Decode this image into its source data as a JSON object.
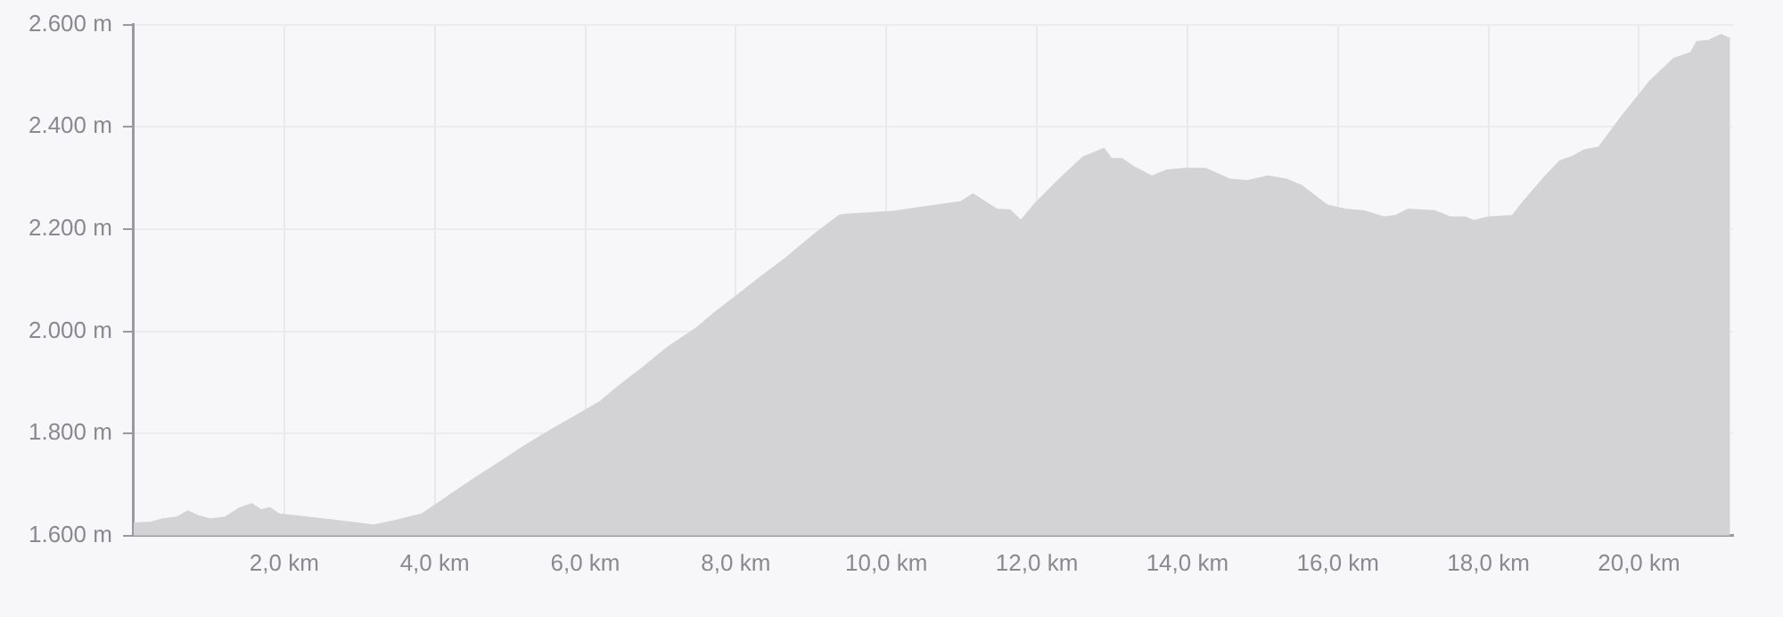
{
  "chart_data": {
    "type": "area",
    "grid": true,
    "legend": false,
    "marker": "none",
    "xlim": [
      0,
      21.25
    ],
    "xticks": [
      {
        "value": 2,
        "label": "2,0 km"
      },
      {
        "value": 4,
        "label": "4,0 km"
      },
      {
        "value": 6,
        "label": "6,0 km"
      },
      {
        "value": 8,
        "label": "8,0 km"
      },
      {
        "value": 10,
        "label": "10,0 km"
      },
      {
        "value": 12,
        "label": "12,0 km"
      },
      {
        "value": 14,
        "label": "14,0 km"
      },
      {
        "value": 16,
        "label": "16,0 km"
      },
      {
        "value": 18,
        "label": "18,0 km"
      },
      {
        "value": 20,
        "label": "20,0 km"
      }
    ],
    "ylim": [
      1600,
      2600
    ],
    "yticks": [
      {
        "value": 1600,
        "label": "1.600 m"
      },
      {
        "value": 1800,
        "label": "1.800 m"
      },
      {
        "value": 2000,
        "label": "2.000 m"
      },
      {
        "value": 2200,
        "label": "2.200 m"
      },
      {
        "value": 2400,
        "label": "2.400 m"
      },
      {
        "value": 2600,
        "label": "2.600 m"
      }
    ],
    "x": [
      0,
      0.23,
      0.38,
      0.58,
      0.72,
      0.86,
      1.02,
      1.22,
      1.41,
      1.57,
      1.69,
      1.81,
      1.93,
      2.17,
      2.64,
      3.19,
      3.47,
      3.83,
      4.07,
      4.3,
      4.54,
      4.86,
      5.17,
      5.57,
      5.92,
      6.2,
      6.44,
      6.76,
      7.11,
      7.47,
      7.71,
      8.03,
      8.34,
      8.66,
      9.05,
      9.37,
      9.45,
      10.08,
      10.99,
      11.15,
      11.31,
      11.47,
      11.64,
      11.79,
      11.98,
      12.3,
      12.62,
      12.89,
      12.99,
      13.13,
      13.29,
      13.53,
      13.73,
      13.97,
      14.24,
      14.56,
      14.8,
      15.07,
      15.31,
      15.51,
      15.86,
      16.1,
      16.34,
      16.61,
      16.77,
      16.93,
      17.29,
      17.49,
      17.69,
      17.8,
      18,
      18.32,
      18.48,
      18.72,
      18.95,
      19.11,
      19.27,
      19.47,
      19.75,
      20.14,
      20.46,
      20.69,
      20.77,
      20.93,
      21.09,
      21.21
    ],
    "series": [
      {
        "color": "#d3d3d5",
        "values": [
          1624,
          1626,
          1632,
          1636,
          1648,
          1638,
          1632,
          1636,
          1654,
          1662,
          1650,
          1654,
          1642,
          1638,
          1630,
          1620,
          1629,
          1642,
          1666,
          1689,
          1713,
          1743,
          1773,
          1809,
          1838,
          1862,
          1892,
          1928,
          1970,
          2005,
          2035,
          2071,
          2107,
          2142,
          2190,
          2226,
          2228,
          2234,
          2253,
          2268,
          2253,
          2238,
          2237,
          2216,
          2250,
          2297,
          2341,
          2357,
          2337,
          2337,
          2321,
          2303,
          2315,
          2318,
          2318,
          2297,
          2294,
          2303,
          2297,
          2285,
          2246,
          2238,
          2235,
          2223,
          2226,
          2238,
          2235,
          2223,
          2223,
          2216,
          2223,
          2226,
          2256,
          2297,
          2333,
          2341,
          2354,
          2360,
          2416,
          2488,
          2533,
          2545,
          2566,
          2569,
          2580,
          2572
        ]
      }
    ]
  }
}
